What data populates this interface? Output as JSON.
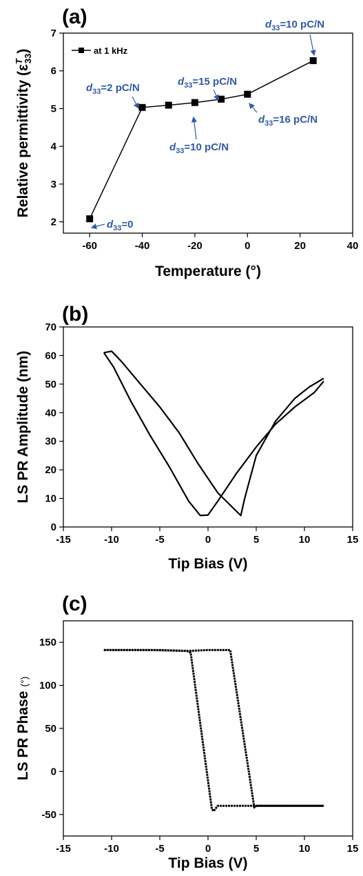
{
  "colors": {
    "ink": "#000000",
    "annotation": "#2e5aa8"
  },
  "chart_data": [
    {
      "panel": "(a)",
      "type": "line",
      "xlabel": "Temperature (°)",
      "ylabel": "Relative permittivity (ε",
      "ylabel_symbol": "T",
      "ylabel_subscript": "33",
      "ylabel_close": ")",
      "xlim": [
        -70,
        40
      ],
      "ylim": [
        1.7,
        7
      ],
      "xticks": [
        -60,
        -40,
        -20,
        0,
        20,
        40
      ],
      "yticks": [
        2,
        3,
        4,
        5,
        6,
        7
      ],
      "legend": "at 1 kHz",
      "legend_position": "top-left",
      "series": [
        {
          "name": "at 1 kHz",
          "x": [
            -60,
            -40,
            -30,
            -20,
            -10,
            0,
            25
          ],
          "y": [
            2.08,
            5.03,
            5.09,
            5.16,
            5.25,
            5.38,
            6.27
          ]
        }
      ],
      "annotations": [
        {
          "d": "d",
          "sub": "33",
          "text": "=0",
          "x": -60,
          "y": 2.08
        },
        {
          "d": "d",
          "sub": "33",
          "text": "=2 pC/N",
          "x": -40,
          "y": 5.03
        },
        {
          "d": "d",
          "sub": "33",
          "text": "=10 pC/N",
          "x": -20,
          "y": 5.16
        },
        {
          "d": "d",
          "sub": "33",
          "text": "=15 pC/N",
          "x": -10,
          "y": 5.25
        },
        {
          "d": "d",
          "sub": "33",
          "text": "=16 pC/N",
          "x": 0,
          "y": 5.38
        },
        {
          "d": "d",
          "sub": "33",
          "text": "=10 pC/N",
          "x": 25,
          "y": 6.27
        }
      ]
    },
    {
      "panel": "(b)",
      "type": "line",
      "xlabel": "Tip Bias (V)",
      "ylabel": "LS PR Amplitude (nm)",
      "xlim": [
        -15,
        15
      ],
      "ylim": [
        0,
        70
      ],
      "xticks": [
        -15,
        -10,
        -5,
        0,
        5,
        10,
        15
      ],
      "yticks": [
        0,
        10,
        20,
        30,
        40,
        50,
        60,
        70
      ],
      "series": [
        {
          "x": [
            12,
            10.5,
            9,
            7,
            5,
            3.8,
            3.4,
            2.5,
            1,
            -1,
            -3,
            -5,
            -7,
            -9,
            -10,
            -10.8
          ],
          "y": [
            52,
            49,
            45,
            37,
            25,
            10,
            4,
            7,
            12,
            22,
            33,
            42,
            50,
            58,
            61.5,
            61
          ]
        },
        {
          "x": [
            -10.8,
            -9.8,
            -8,
            -6,
            -4,
            -2,
            -0.8,
            0,
            1,
            3,
            5,
            7,
            9,
            11,
            12
          ],
          "y": [
            61,
            56,
            44,
            32,
            21,
            9,
            4,
            4.2,
            9,
            19,
            28,
            36,
            42,
            47,
            51
          ]
        }
      ]
    },
    {
      "panel": "(c)",
      "type": "line",
      "xlabel": "Tip Bias (V)",
      "ylabel": "LS PR Phase",
      "ylabel_unit": "(°)",
      "xlim": [
        -15,
        15
      ],
      "ylim": [
        -75,
        175
      ],
      "xticks": [
        -15,
        -10,
        -5,
        0,
        5,
        10,
        15
      ],
      "yticks": [
        -50,
        0,
        50,
        100,
        150
      ],
      "series": [
        {
          "x": [
            -10.8,
            -5,
            -2,
            0,
            2,
            2.3,
            4.8,
            5,
            8,
            12
          ],
          "y": [
            141,
            141,
            140,
            141,
            141,
            141,
            -42,
            -40,
            -40,
            -40
          ]
        },
        {
          "x": [
            12,
            8,
            4,
            1,
            0.6,
            0.4,
            -1.8,
            -2.2,
            -6,
            -10.8
          ],
          "y": [
            -40,
            -40,
            -40,
            -40,
            -46,
            -44,
            138,
            140,
            141,
            141
          ]
        }
      ]
    }
  ]
}
